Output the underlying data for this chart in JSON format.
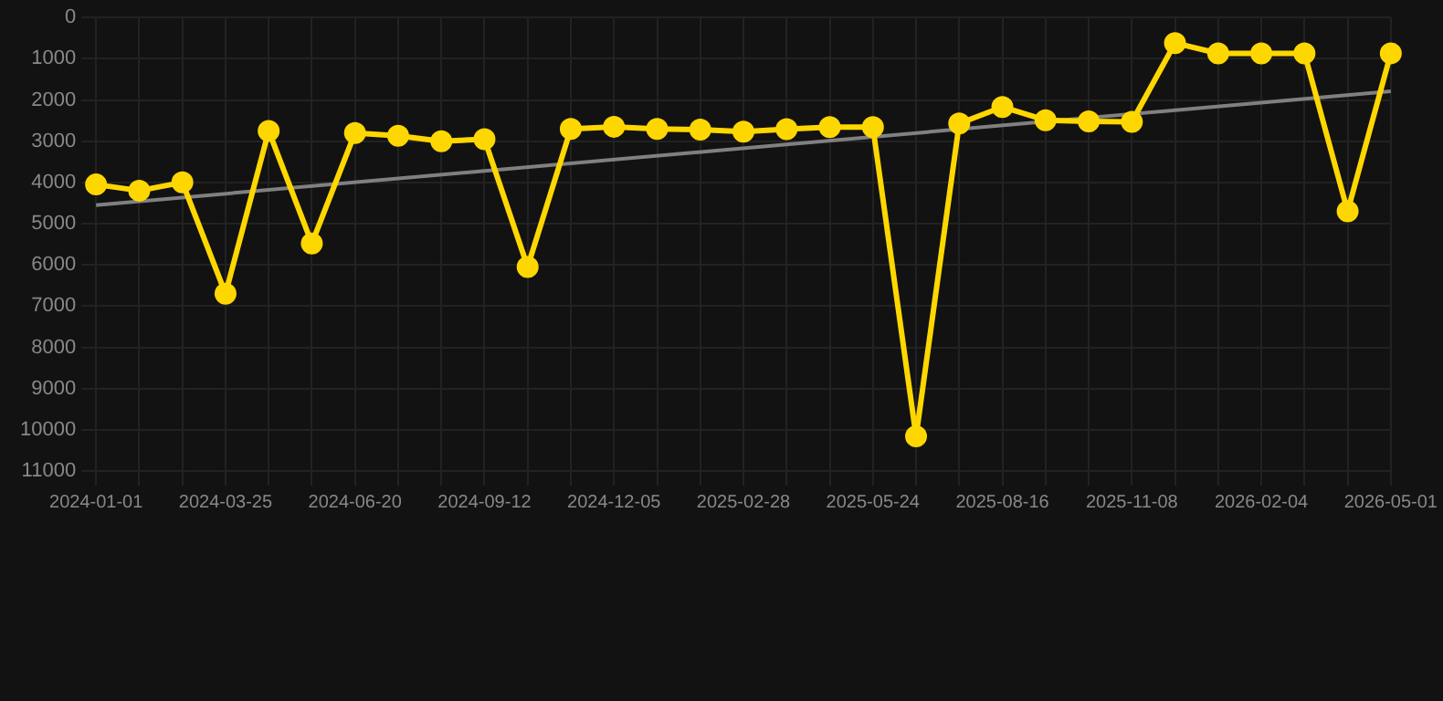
{
  "chart_data": {
    "type": "line",
    "categories": [
      "2024-01-01",
      null,
      null,
      "2024-03-25",
      null,
      null,
      "2024-06-20",
      null,
      null,
      "2024-09-12",
      null,
      null,
      "2024-12-05",
      null,
      null,
      "2025-02-28",
      null,
      null,
      "2025-05-24",
      null,
      null,
      "2025-08-16",
      null,
      null,
      "2025-11-08",
      null,
      null,
      "2026-02-04",
      null,
      null,
      "2026-05-01"
    ],
    "series": [
      {
        "color": "#ffd700",
        "marker": "circle",
        "values": [
          4050,
          4200,
          4000,
          6700,
          2750,
          5480,
          2800,
          2870,
          3000,
          2950,
          6050,
          2700,
          2650,
          2700,
          2720,
          2770,
          2710,
          2660,
          2660,
          10160,
          2570,
          2170,
          2490,
          2520,
          2530,
          620,
          870,
          870,
          870,
          4700,
          870
        ]
      },
      {
        "color": "#808080",
        "marker": "none",
        "values": [
          4550,
          null,
          null,
          null,
          null,
          null,
          null,
          null,
          null,
          null,
          null,
          null,
          null,
          null,
          null,
          null,
          null,
          null,
          null,
          null,
          null,
          null,
          null,
          null,
          null,
          null,
          null,
          null,
          null,
          null,
          1790
        ]
      }
    ],
    "ylim": [
      11000,
      0
    ],
    "yticks": [
      0,
      1000,
      2000,
      3000,
      4000,
      5000,
      6000,
      7000,
      8000,
      9000,
      10000,
      11000
    ],
    "grid": true,
    "legend": false
  }
}
